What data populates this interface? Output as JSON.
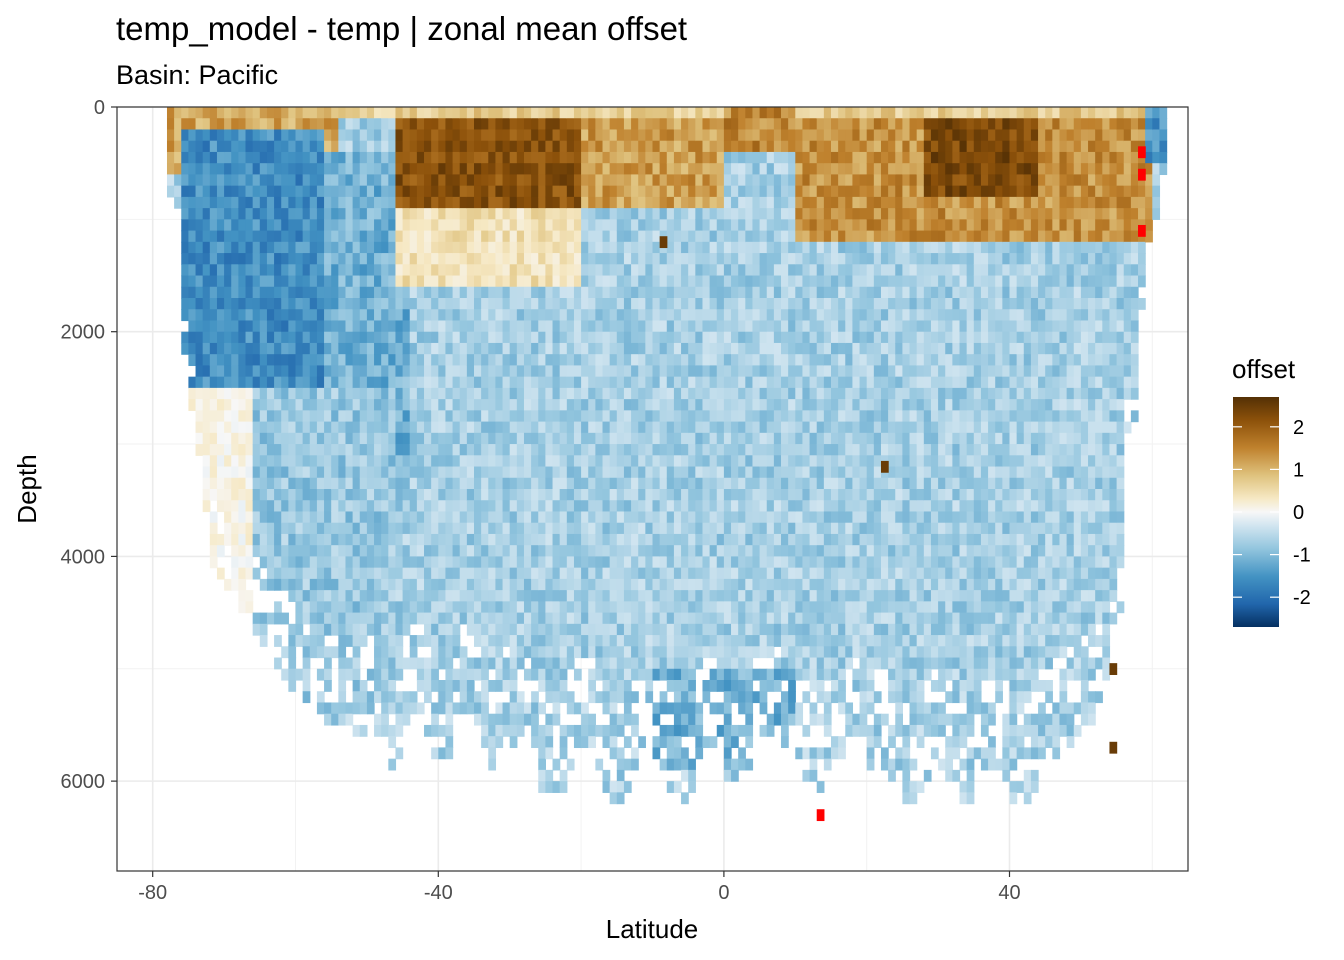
{
  "chart_data": {
    "type": "heatmap",
    "title": "temp_model - temp  | zonal mean offset",
    "subtitle": "Basin: Pacific",
    "xlabel": "Latitude",
    "ylabel": "Depth",
    "xlim": [
      -85,
      65
    ],
    "ylim": [
      6800,
      0
    ],
    "y_reversed": true,
    "x_ticks": [
      -80,
      -40,
      0,
      40
    ],
    "x_tick_labels": [
      "-80",
      "-40",
      "0",
      "40"
    ],
    "y_ticks": [
      0,
      2000,
      4000,
      6000
    ],
    "y_tick_labels": [
      "0",
      "2000",
      "4000",
      "6000"
    ],
    "grid": true,
    "legend": {
      "title": "offset",
      "placement": "right",
      "range": [
        -2.7,
        2.7
      ],
      "ticks": [
        2,
        1,
        0,
        -1,
        -2
      ],
      "tick_labels": [
        "2",
        "1",
        "0",
        "-1",
        "-2"
      ],
      "colors": [
        "#053061",
        "#2166ac",
        "#4393c3",
        "#92c5de",
        "#d1e5f0",
        "#f7f7f7",
        "#f6e8c3",
        "#dfc27d",
        "#bf812d",
        "#8c510a",
        "#543005"
      ]
    },
    "cell_size": {
      "lat": 1.0,
      "depth": 100
    },
    "regions": [
      {
        "lat": [
          -78,
          -54
        ],
        "depth": [
          0,
          600
        ],
        "value": 1.3,
        "desc": "surface warm band south"
      },
      {
        "lat": [
          -76,
          -56
        ],
        "depth": [
          150,
          2500
        ],
        "value": -1.7
      },
      {
        "lat": [
          -56,
          -44
        ],
        "depth": [
          400,
          3500
        ],
        "value": -1.3
      },
      {
        "lat": [
          -76,
          -66
        ],
        "depth": [
          2500,
          5000
        ],
        "value": 0.15
      },
      {
        "lat": [
          -66,
          -46
        ],
        "depth": [
          2500,
          5400
        ],
        "value": -1.0
      },
      {
        "lat": [
          -46,
          -20
        ],
        "depth": [
          100,
          900
        ],
        "value": 2.2
      },
      {
        "lat": [
          -46,
          -20
        ],
        "depth": [
          900,
          1600
        ],
        "value": 0.6
      },
      {
        "lat": [
          -20,
          0
        ],
        "depth": [
          100,
          900
        ],
        "value": 1.4
      },
      {
        "lat": [
          0,
          10
        ],
        "depth": [
          0,
          400
        ],
        "value": 1.6
      },
      {
        "lat": [
          10,
          60
        ],
        "depth": [
          100,
          1200
        ],
        "value": 1.5
      },
      {
        "lat": [
          28,
          44
        ],
        "depth": [
          100,
          800
        ],
        "value": 2.3
      },
      {
        "lat": [
          -44,
          56
        ],
        "depth": [
          1600,
          5600
        ],
        "value": -0.9
      },
      {
        "lat": [
          -10,
          10
        ],
        "depth": [
          5000,
          5900
        ],
        "value": -1.3
      }
    ],
    "outliers": [
      {
        "lat": 58,
        "depth": 350,
        "value": 2.7
      },
      {
        "lat": 58,
        "depth": 550,
        "value": 2.7
      },
      {
        "lat": 58,
        "depth": 1050,
        "value": 2.7
      },
      {
        "lat": 13,
        "depth": 6250,
        "value": 2.7
      },
      {
        "lat": -9,
        "depth": 1150,
        "value": 2.5
      },
      {
        "lat": 22,
        "depth": 3150,
        "value": 2.5
      },
      {
        "lat": 54,
        "depth": 4950,
        "value": 2.5
      },
      {
        "lat": 54,
        "depth": 5650,
        "value": 2.5
      }
    ]
  }
}
